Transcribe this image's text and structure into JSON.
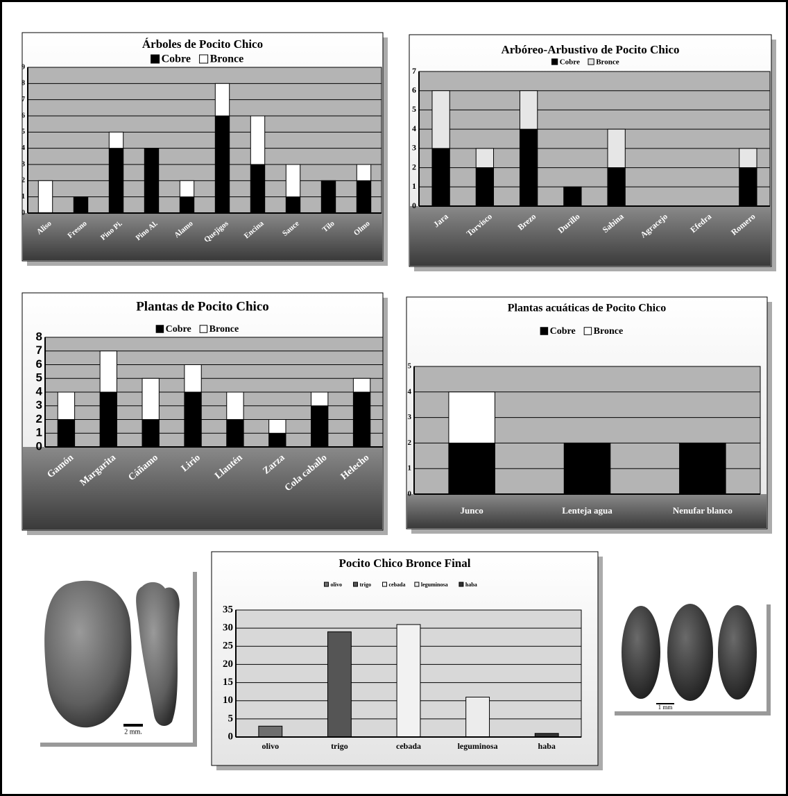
{
  "chart_data": [
    {
      "type": "bar",
      "stacked": true,
      "title": "Árboles de Pocito Chico",
      "categories": [
        "Aliso",
        "Fresno",
        "Pino Pi.",
        "Pino Al.",
        "Alamo",
        "Quejigos",
        "Encina",
        "Sauce",
        "Tilo",
        "Olmo"
      ],
      "series": [
        {
          "name": "Cobre",
          "color": "#000000",
          "values": [
            0,
            1,
            4,
            4,
            1,
            6,
            3,
            1,
            2,
            2
          ]
        },
        {
          "name": "Bronce",
          "color": "#ffffff",
          "values": [
            2,
            0,
            1,
            0,
            1,
            2,
            3,
            2,
            0,
            1
          ]
        }
      ],
      "ylim": [
        0,
        9
      ],
      "yticks": [
        0,
        1,
        2,
        3,
        4,
        5,
        6,
        7,
        8,
        9
      ],
      "grid": true
    },
    {
      "type": "bar",
      "stacked": true,
      "title": "Arbóreo-Arbustivo de Pocito Chico",
      "categories": [
        "Jara",
        "Torvisco",
        "Brezo",
        "Durillo",
        "Sabina",
        "Agracejo",
        "Efedra",
        "Romero"
      ],
      "series": [
        {
          "name": "Cobre",
          "color": "#000000",
          "values": [
            3,
            2,
            4,
            1,
            2,
            0,
            0,
            2
          ]
        },
        {
          "name": "Bronce",
          "color": "#e6e6e6",
          "values": [
            3,
            1,
            2,
            0,
            2,
            0,
            0,
            1
          ]
        }
      ],
      "ylim": [
        0,
        7
      ],
      "yticks": [
        0,
        1,
        2,
        3,
        4,
        5,
        6,
        7
      ],
      "grid": true
    },
    {
      "type": "bar",
      "stacked": true,
      "title": "Plantas de Pocito Chico",
      "categories": [
        "Gamón",
        "Margarita",
        "Cáñamo",
        "Lirio",
        "Llantén",
        "Zarza",
        "Cola caballo",
        "Helecho"
      ],
      "series": [
        {
          "name": "Cobre",
          "color": "#000000",
          "values": [
            2,
            4,
            2,
            4,
            2,
            1,
            3,
            4
          ]
        },
        {
          "name": "Bronce",
          "color": "#ffffff",
          "values": [
            2,
            3,
            3,
            2,
            2,
            1,
            1,
            1
          ]
        }
      ],
      "ylim": [
        0,
        8
      ],
      "yticks": [
        0,
        1,
        2,
        3,
        4,
        5,
        6,
        7,
        8
      ],
      "grid": true
    },
    {
      "type": "bar",
      "stacked": true,
      "title": "Plantas acuáticas de Pocito Chico",
      "categories": [
        "Junco",
        "Lenteja agua",
        "Nenufar blanco"
      ],
      "series": [
        {
          "name": "Cobre",
          "color": "#000000",
          "values": [
            2,
            2,
            2
          ]
        },
        {
          "name": "Bronce",
          "color": "#ffffff",
          "values": [
            2,
            0,
            0
          ]
        }
      ],
      "ylim": [
        0,
        5
      ],
      "yticks": [
        0,
        1,
        2,
        3,
        4,
        5
      ],
      "grid": true
    },
    {
      "type": "bar",
      "title": "Pocito Chico Bronce Final",
      "categories": [
        "olivo",
        "trigo",
        "cebada",
        "leguminosa",
        "haba"
      ],
      "values": [
        3,
        29,
        31,
        11,
        1
      ],
      "colors": [
        "#6e6e6e",
        "#555555",
        "#f2f2f2",
        "#ececec",
        "#333333"
      ],
      "ylim": [
        0,
        35
      ],
      "yticks": [
        0,
        5,
        10,
        15,
        20,
        25,
        30,
        35
      ],
      "grid": true
    }
  ],
  "photos": [
    {
      "scale_label": "2 mm."
    },
    {
      "scale_label": "1 mm"
    }
  ]
}
